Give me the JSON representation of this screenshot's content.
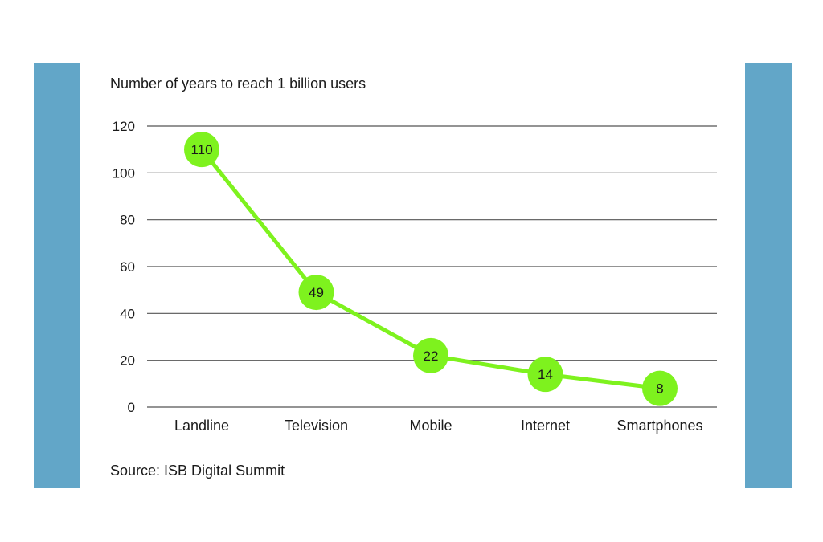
{
  "colors": {
    "side_bar": "#62a6c8",
    "line": "#7ef21e",
    "marker": "#7ef21e",
    "grid": "#555555",
    "text": "#1a1a1a"
  },
  "chart_data": {
    "type": "line",
    "title": "Number of years to reach 1 billion users",
    "source": "Source: ISB Digital Summit",
    "categories": [
      "Landline",
      "Television",
      "Mobile",
      "Internet",
      "Smartphones"
    ],
    "series": [
      {
        "values": [
          110,
          49,
          22,
          14,
          8
        ]
      }
    ],
    "data_labels": [
      "110",
      "49",
      "22",
      "14",
      "8"
    ],
    "yticks": [
      0,
      20,
      40,
      60,
      80,
      100,
      120
    ],
    "ylim": [
      0,
      120
    ],
    "xlabel": "",
    "ylabel": "",
    "grid": true,
    "legend": "none"
  }
}
